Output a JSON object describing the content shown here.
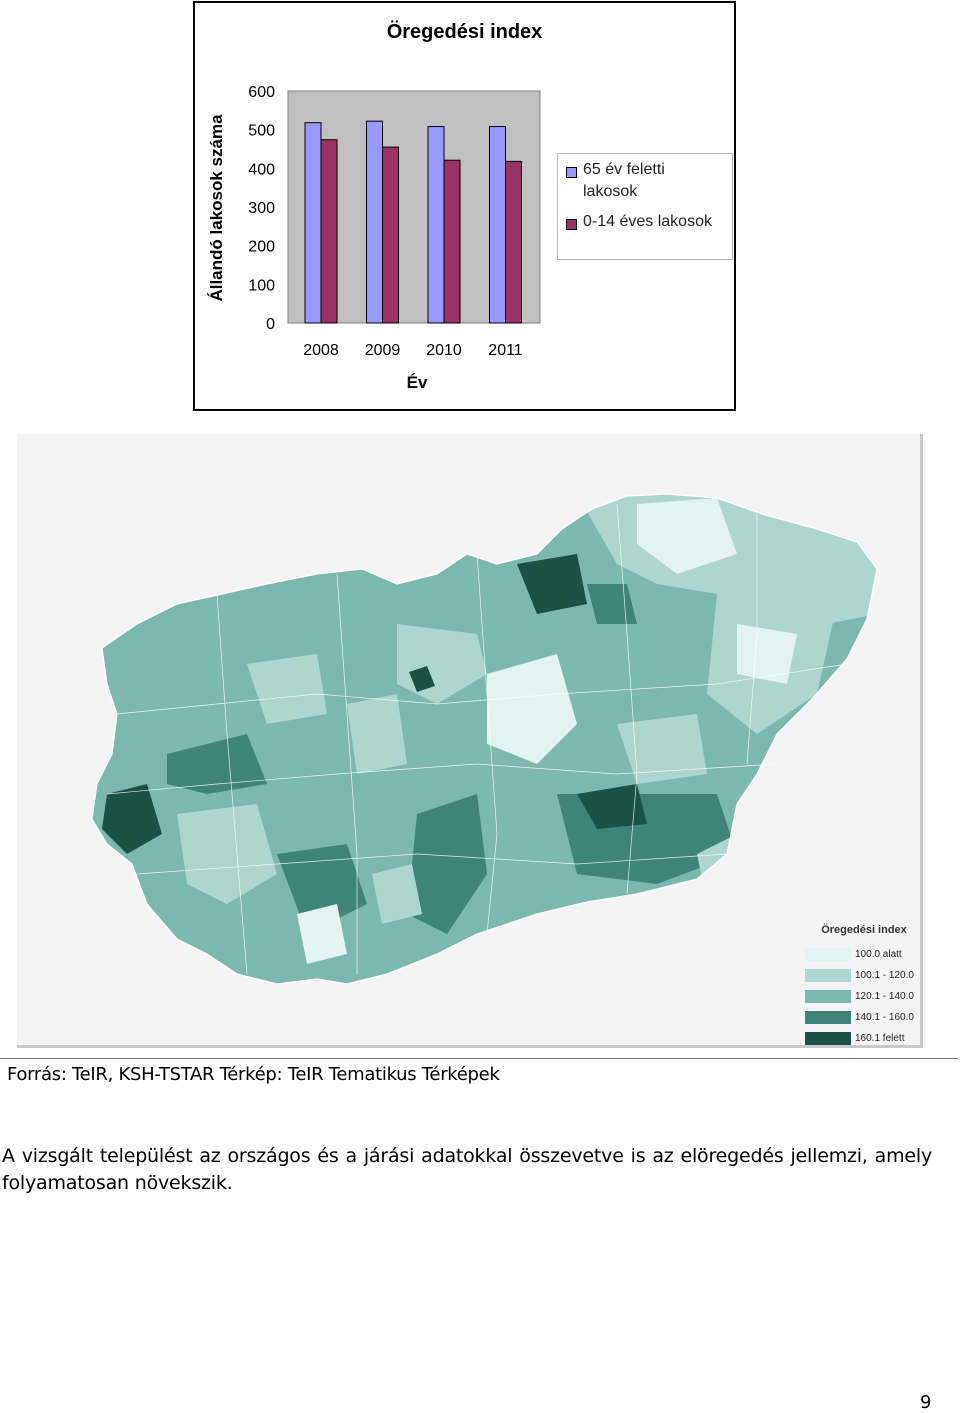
{
  "chart_data": {
    "type": "bar",
    "title": "Öregedési index",
    "xlabel": "Év",
    "ylabel": "Állandó lakosok száma",
    "categories": [
      "2008",
      "2009",
      "2010",
      "2011"
    ],
    "yticks": [
      "0",
      "100",
      "200",
      "300",
      "400",
      "500",
      "600"
    ],
    "ylim": [
      0,
      600
    ],
    "grid": false,
    "legend_position": "right",
    "series": [
      {
        "name": "65 év feletti lakosok",
        "color": "#9999ff",
        "values": [
          518,
          522,
          508,
          508
        ]
      },
      {
        "name": "0-14 éves lakosok",
        "color": "#993366",
        "values": [
          474,
          455,
          421,
          418
        ]
      }
    ]
  },
  "map": {
    "legend_title": "Öregedési index",
    "legend": [
      {
        "label": "100.0 alatt",
        "color": "#e3f3f1"
      },
      {
        "label": "100.1 - 120.0",
        "color": "#aed6d0"
      },
      {
        "label": "120.1 - 140.0",
        "color": "#7db8ae"
      },
      {
        "label": "140.1 - 160.0",
        "color": "#3f8577"
      },
      {
        "label": "160.1 felett",
        "color": "#1b5147"
      }
    ]
  },
  "caption": "Forrás: TeIR, KSH-TSTAR Térkép: TeIR  Tematikus Térképek",
  "paragraph": "A vizsgált települést az országos és a járási adatokkal összevetve is az elöregedés jellemzi, amely folyamatosan növekszik.",
  "page_number": "9"
}
